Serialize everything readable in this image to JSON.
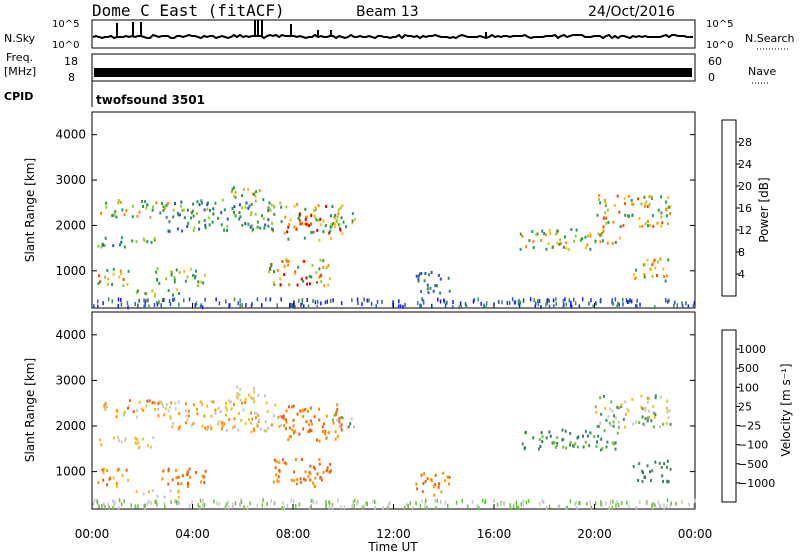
{
  "header": {
    "title": "Dome C East (fitACF)",
    "beam": "Beam 13",
    "date": "24/Oct/2016"
  },
  "noise_panel": {
    "left_label": "N.Sky",
    "right_label": "N.Search",
    "tick_top_left": "10^5",
    "tick_bottom_left": "10^0",
    "tick_top_right": "10^5",
    "tick_bottom_right": "10^0"
  },
  "freq_panel": {
    "left_label_1": "Freq.",
    "left_label_2": "[MHz]",
    "right_label": "Nave",
    "left_tick_top": "18",
    "left_tick_bottom": "8",
    "right_tick_top": "60",
    "right_tick_bottom": "0"
  },
  "cpid_panel": {
    "label": "CPID",
    "value": "twofsound 3501"
  },
  "x_axis": {
    "label": "Time UT",
    "ticks": [
      "00:00",
      "04:00",
      "08:00",
      "12:00",
      "16:00",
      "20:00",
      "00:00"
    ]
  },
  "chart_data": [
    {
      "type": "heatmap",
      "name": "power",
      "ylabel": "Slant Range [km]",
      "yticks": [
        1000,
        2000,
        3000,
        4000
      ],
      "ylim": [
        180,
        4500
      ],
      "xlim": [
        0,
        24
      ],
      "colorbar": {
        "label": "Power [dB]",
        "ticks": [
          "4",
          "8",
          "12",
          "16",
          "20",
          "24",
          "28"
        ],
        "colors": [
          "#1a1aff",
          "#2a58b8",
          "#3a8a5a",
          "#2a9e4a",
          "#9acd32",
          "#f0c020",
          "#ff8c00",
          "#ff4500",
          "#e00000"
        ]
      },
      "regions": [
        {
          "t": [
            0.2,
            3.0
          ],
          "r": [
            2200,
            2600
          ],
          "c": [
            2,
            3,
            4,
            6
          ]
        },
        {
          "t": [
            0.2,
            2.5
          ],
          "r": [
            1550,
            1800
          ],
          "c": [
            1,
            2,
            3,
            4
          ]
        },
        {
          "t": [
            0.2,
            1.5
          ],
          "r": [
            700,
            1100
          ],
          "c": [
            3,
            4,
            5,
            6,
            7
          ]
        },
        {
          "t": [
            1.5,
            3.5
          ],
          "r": [
            450,
            620
          ],
          "c": [
            2,
            3,
            4,
            5
          ]
        },
        {
          "t": [
            2.5,
            4.5
          ],
          "r": [
            700,
            1100
          ],
          "c": [
            2,
            3,
            4,
            5
          ]
        },
        {
          "t": [
            3.0,
            7.5
          ],
          "r": [
            1900,
            2600
          ],
          "c": [
            1,
            2,
            3,
            4
          ]
        },
        {
          "t": [
            5.5,
            7.0
          ],
          "r": [
            2600,
            2900
          ],
          "c": [
            3,
            4,
            5,
            6
          ]
        },
        {
          "t": [
            7.5,
            10.0
          ],
          "r": [
            1700,
            2500
          ],
          "c": [
            2,
            3,
            4,
            5,
            6,
            8
          ]
        },
        {
          "t": [
            8.2,
            8.8
          ],
          "r": [
            1900,
            2300
          ],
          "c": [
            7,
            8
          ]
        },
        {
          "t": [
            7.0,
            9.5
          ],
          "r": [
            700,
            1300
          ],
          "c": [
            3,
            4,
            5,
            6,
            7,
            8
          ]
        },
        {
          "t": [
            9.5,
            10.5
          ],
          "r": [
            2000,
            2300
          ],
          "c": [
            3,
            4,
            5
          ]
        },
        {
          "t": [
            12.8,
            14.2
          ],
          "r": [
            500,
            1000
          ],
          "c": [
            1,
            2
          ]
        },
        {
          "t": [
            17.0,
            21.0
          ],
          "r": [
            1500,
            1950
          ],
          "c": [
            2,
            3,
            4,
            5,
            6
          ]
        },
        {
          "t": [
            20.0,
            23.0
          ],
          "r": [
            2000,
            2700
          ],
          "c": [
            3,
            4,
            5,
            6,
            7
          ]
        },
        {
          "t": [
            21.5,
            23.0
          ],
          "r": [
            800,
            1300
          ],
          "c": [
            3,
            4,
            5,
            6,
            7
          ]
        }
      ]
    },
    {
      "type": "heatmap",
      "name": "velocity",
      "ylabel": "Slant Range [km]",
      "yticks": [
        1000,
        2000,
        3000,
        4000
      ],
      "ylim": [
        180,
        4500
      ],
      "xlim": [
        0,
        24
      ],
      "colorbar": {
        "label": "Velocity [m s⁻¹]",
        "ticks": [
          "1000",
          "500",
          "100",
          "25",
          "−25",
          "−100",
          "−500",
          "−1000"
        ],
        "colors": [
          "#1e3aa0",
          "#3060b0",
          "#3a7a6a",
          "#4a8a5a",
          "#6ac040",
          "#c8c8c8",
          "#f0c020",
          "#ff9000",
          "#f06010",
          "#ff0000"
        ]
      },
      "regions": [
        {
          "t": [
            0.2,
            3.0
          ],
          "r": [
            2200,
            2600
          ],
          "c": [
            5,
            6,
            7,
            8
          ]
        },
        {
          "t": [
            0.2,
            2.5
          ],
          "r": [
            1550,
            1800
          ],
          "c": [
            5,
            6
          ]
        },
        {
          "t": [
            0.2,
            1.5
          ],
          "r": [
            700,
            1100
          ],
          "c": [
            6,
            7,
            8
          ]
        },
        {
          "t": [
            1.5,
            3.5
          ],
          "r": [
            450,
            620
          ],
          "c": [
            5,
            6
          ]
        },
        {
          "t": [
            2.5,
            4.5
          ],
          "r": [
            700,
            1100
          ],
          "c": [
            7,
            8
          ]
        },
        {
          "t": [
            3.0,
            7.5
          ],
          "r": [
            1900,
            2600
          ],
          "c": [
            5,
            6,
            7
          ]
        },
        {
          "t": [
            5.5,
            7.0
          ],
          "r": [
            2600,
            2900
          ],
          "c": [
            5,
            6
          ]
        },
        {
          "t": [
            7.5,
            10.0
          ],
          "r": [
            1700,
            2500
          ],
          "c": [
            7,
            8
          ]
        },
        {
          "t": [
            7.0,
            9.5
          ],
          "r": [
            700,
            1300
          ],
          "c": [
            7,
            8
          ]
        },
        {
          "t": [
            9.5,
            10.5
          ],
          "r": [
            2000,
            2300
          ],
          "c": [
            3,
            4,
            5
          ]
        },
        {
          "t": [
            12.8,
            14.2
          ],
          "r": [
            500,
            1000
          ],
          "c": [
            7,
            8
          ]
        },
        {
          "t": [
            17.0,
            21.0
          ],
          "r": [
            1500,
            1950
          ],
          "c": [
            2,
            3,
            4
          ]
        },
        {
          "t": [
            20.0,
            23.0
          ],
          "r": [
            2000,
            2700
          ],
          "c": [
            3,
            4,
            5,
            6
          ]
        },
        {
          "t": [
            21.5,
            23.0
          ],
          "r": [
            800,
            1300
          ],
          "c": [
            2,
            3
          ]
        }
      ]
    }
  ]
}
